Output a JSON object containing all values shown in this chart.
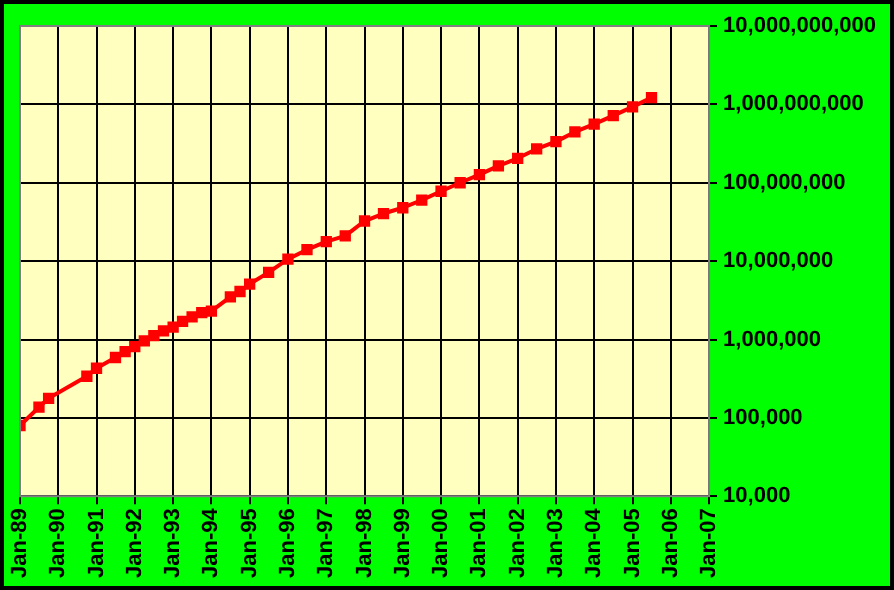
{
  "chart_data": {
    "type": "line",
    "x": [
      "1989-01",
      "1989-07",
      "1989-10",
      "1990-10",
      "1991-01",
      "1991-07",
      "1991-10",
      "1992-01",
      "1992-04",
      "1992-07",
      "1992-10",
      "1993-01",
      "1993-04",
      "1993-07",
      "1993-10",
      "1994-01",
      "1994-07",
      "1994-10",
      "1995-01",
      "1995-07",
      "1996-01",
      "1996-07",
      "1997-01",
      "1997-07",
      "1998-01",
      "1998-07",
      "1999-01",
      "1999-07",
      "2000-01",
      "2000-07",
      "2001-01",
      "2001-07",
      "2002-01",
      "2002-07",
      "2003-01",
      "2003-07",
      "2004-01",
      "2004-07",
      "2005-01",
      "2005-07"
    ],
    "series": [
      {
        "color": "#ff0000",
        "values": [
          80000,
          137000,
          178000,
          340000,
          430000,
          590000,
          700000,
          810000,
          960000,
          1120000,
          1290000,
          1440000,
          1700000,
          1950000,
          2200000,
          2300000,
          3500000,
          4100000,
          5100000,
          7200000,
          10600000,
          14000000,
          17700000,
          21000000,
          32500000,
          40500000,
          48000000,
          60000000,
          78000000,
          100000000,
          127000000,
          164000000,
          205000000,
          270000000,
          335000000,
          445000000,
          560000000,
          720000000,
          930000000,
          1220000000
        ]
      }
    ],
    "xlim": [
      "1989-01",
      "2007-01"
    ],
    "xticks": [
      {
        "value": "1989-01",
        "label": "Jan-89"
      },
      {
        "value": "1990-01",
        "label": "Jan-90"
      },
      {
        "value": "1991-01",
        "label": "Jan-91"
      },
      {
        "value": "1992-01",
        "label": "Jan-92"
      },
      {
        "value": "1993-01",
        "label": "Jan-93"
      },
      {
        "value": "1994-01",
        "label": "Jan-94"
      },
      {
        "value": "1995-01",
        "label": "Jan-95"
      },
      {
        "value": "1996-01",
        "label": "Jan-96"
      },
      {
        "value": "1997-01",
        "label": "Jan-97"
      },
      {
        "value": "1998-01",
        "label": "Jan-98"
      },
      {
        "value": "1999-01",
        "label": "Jan-99"
      },
      {
        "value": "2000-01",
        "label": "Jan-00"
      },
      {
        "value": "2001-01",
        "label": "Jan-01"
      },
      {
        "value": "2002-01",
        "label": "Jan-02"
      },
      {
        "value": "2003-01",
        "label": "Jan-03"
      },
      {
        "value": "2004-01",
        "label": "Jan-04"
      },
      {
        "value": "2005-01",
        "label": "Jan-05"
      },
      {
        "value": "2006-01",
        "label": "Jan-06"
      },
      {
        "value": "2007-01",
        "label": "Jan-07"
      }
    ],
    "ylim": [
      10000,
      10000000000
    ],
    "yticks": [
      {
        "value": 10000,
        "label": "10,000"
      },
      {
        "value": 100000,
        "label": "100,000"
      },
      {
        "value": 1000000,
        "label": "1,000,000"
      },
      {
        "value": 10000000,
        "label": "10,000,000"
      },
      {
        "value": 100000000,
        "label": "100,000,000"
      },
      {
        "value": 1000000000,
        "label": "1,000,000,000"
      },
      {
        "value": 10000000000,
        "label": "10,000,000,000"
      }
    ],
    "log": "y",
    "grid": true,
    "legend": false,
    "marker": "square",
    "line_style": "solid"
  }
}
